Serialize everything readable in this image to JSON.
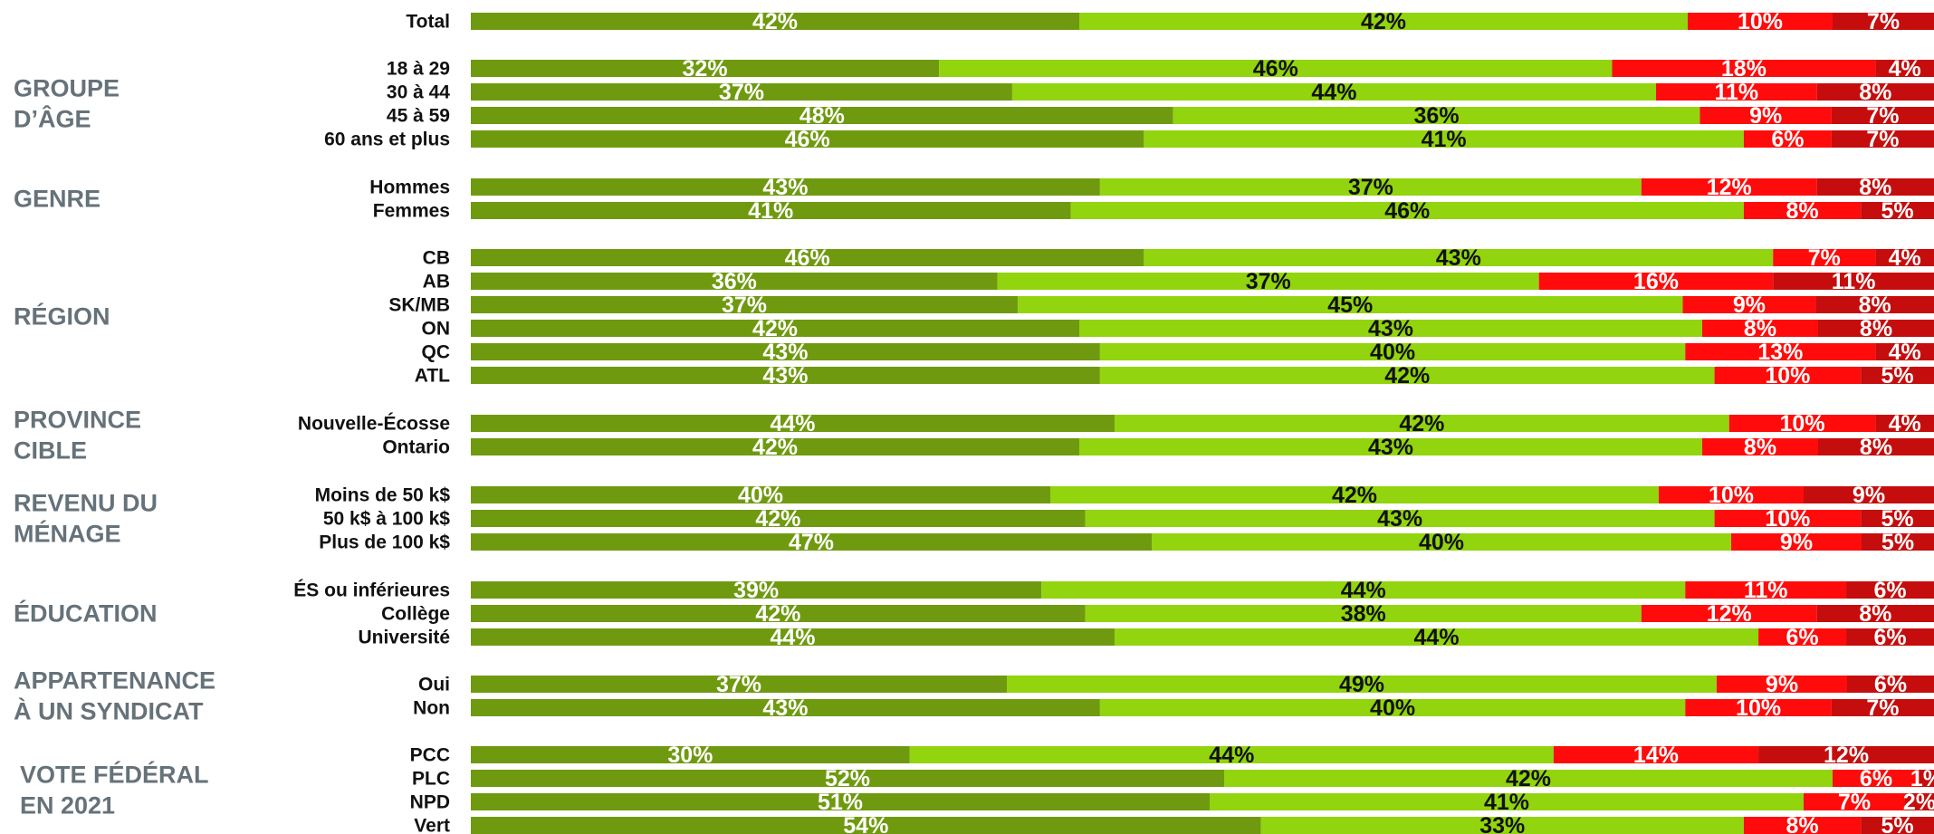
{
  "chart_data": {
    "type": "bar",
    "orientation": "horizontal",
    "stacked": true,
    "xlim": [
      0,
      100
    ],
    "grid": false,
    "legend": "none",
    "segment_colors": [
      "#6f9a10",
      "#92d40e",
      "#ff0b0b",
      "#c50d0d"
    ],
    "label_colors": [
      "#ffffff",
      "#111111",
      "#ffffff",
      "#ffffff"
    ],
    "groups": [
      {
        "label": [
          "GROUPE",
          "D’ÂGE"
        ],
        "rows": [
          0,
          1,
          2,
          3
        ]
      },
      {
        "label": [
          "GENRE"
        ],
        "rows": [
          4,
          5
        ]
      },
      {
        "label": [
          "RÉGION"
        ],
        "rows": [
          6,
          7,
          8,
          9,
          10,
          11
        ]
      },
      {
        "label": [
          "PROVINCE",
          "CIBLE"
        ],
        "rows": [
          12,
          13
        ]
      },
      {
        "label": [
          "REVENU DU",
          "MÉNAGE"
        ],
        "rows": [
          14,
          15,
          16
        ]
      },
      {
        "label": [
          "ÉDUCATION"
        ],
        "rows": [
          17,
          18,
          19
        ]
      },
      {
        "label": [
          "APPARTENANCE",
          "À UN SYNDICAT"
        ],
        "rows": [
          20,
          21
        ]
      },
      {
        "label": [
          "VOTE FÉDÉRAL",
          "EN 2021"
        ],
        "rows": [
          22,
          23,
          24,
          25
        ]
      }
    ],
    "total": {
      "category": "Total",
      "values": [
        42,
        42,
        10,
        7
      ]
    },
    "rows": [
      {
        "category": "18 à 29",
        "values": [
          32,
          46,
          18,
          4
        ]
      },
      {
        "category": "30 à 44",
        "values": [
          37,
          44,
          11,
          8
        ]
      },
      {
        "category": "45 à 59",
        "values": [
          48,
          36,
          9,
          7
        ]
      },
      {
        "category": "60 ans et plus",
        "values": [
          46,
          41,
          6,
          7
        ]
      },
      {
        "category": "Hommes",
        "values": [
          43,
          37,
          12,
          8
        ]
      },
      {
        "category": "Femmes",
        "values": [
          41,
          46,
          8,
          5
        ]
      },
      {
        "category": "CB",
        "values": [
          46,
          43,
          7,
          4
        ]
      },
      {
        "category": "AB",
        "values": [
          36,
          37,
          16,
          11
        ]
      },
      {
        "category": "SK/MB",
        "values": [
          37,
          45,
          9,
          8
        ]
      },
      {
        "category": "ON",
        "values": [
          42,
          43,
          8,
          8
        ]
      },
      {
        "category": "QC",
        "values": [
          43,
          40,
          13,
          4
        ]
      },
      {
        "category": "ATL",
        "values": [
          43,
          42,
          10,
          5
        ]
      },
      {
        "category": "Nouvelle-Écosse",
        "values": [
          44,
          42,
          10,
          4
        ]
      },
      {
        "category": "Ontario",
        "values": [
          42,
          43,
          8,
          8
        ]
      },
      {
        "category": "Moins de 50 k$",
        "values": [
          40,
          42,
          10,
          9
        ]
      },
      {
        "category": "50 k$ à 100 k$",
        "values": [
          42,
          43,
          10,
          5
        ]
      },
      {
        "category": "Plus de 100 k$",
        "values": [
          47,
          40,
          9,
          5
        ]
      },
      {
        "category": "ÉS ou inférieures",
        "values": [
          39,
          44,
          11,
          6
        ]
      },
      {
        "category": "Collège",
        "values": [
          42,
          38,
          12,
          8
        ]
      },
      {
        "category": "Université",
        "values": [
          44,
          44,
          6,
          6
        ]
      },
      {
        "category": "Oui",
        "values": [
          37,
          49,
          9,
          6
        ]
      },
      {
        "category": "Non",
        "values": [
          43,
          40,
          10,
          7
        ]
      },
      {
        "category": "PCC",
        "values": [
          30,
          44,
          14,
          12
        ]
      },
      {
        "category": "PLC",
        "values": [
          52,
          42,
          6,
          1
        ]
      },
      {
        "category": "NPD",
        "values": [
          51,
          41,
          7,
          2
        ]
      },
      {
        "category": "Vert",
        "values": [
          54,
          33,
          8,
          5
        ]
      }
    ]
  }
}
